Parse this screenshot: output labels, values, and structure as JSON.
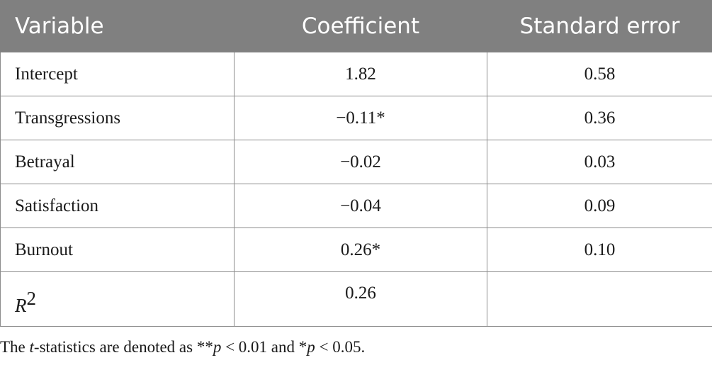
{
  "table": {
    "headers": [
      "Variable",
      "Coefficient",
      "Standard error"
    ],
    "rows": [
      {
        "variable": "Intercept",
        "coefficient": "1.82",
        "standard_error": "0.58"
      },
      {
        "variable": "Transgressions",
        "coefficient": "−0.11*",
        "standard_error": "0.36"
      },
      {
        "variable": "Betrayal",
        "coefficient": "−0.02",
        "standard_error": "0.03"
      },
      {
        "variable": "Satisfaction",
        "coefficient": "−0.04",
        "standard_error": "0.09"
      },
      {
        "variable": "Burnout",
        "coefficient": "0.26*",
        "standard_error": "0.10"
      }
    ],
    "r_squared": {
      "label_base": "R",
      "label_exponent": "2",
      "coefficient": "0.26",
      "standard_error": ""
    }
  },
  "note": {
    "prefix": "The ",
    "t_symbol": "t",
    "middle1": "-statistics are denoted as **",
    "p1": "p",
    "middle2": " < 0.01 and *",
    "p2": "p",
    "suffix": " < 0.05."
  },
  "colors": {
    "header_background": "#808080",
    "header_text": "#ffffff",
    "grid_lines": "#8c8c8c",
    "body_text": "#1a1a1a"
  }
}
